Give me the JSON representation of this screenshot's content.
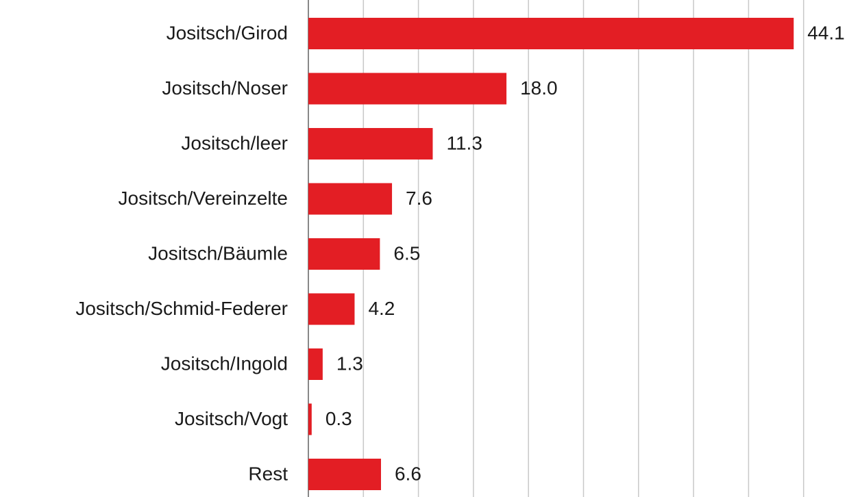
{
  "chart_data": {
    "type": "bar",
    "orientation": "horizontal",
    "categories": [
      "Jositsch/Girod",
      "Jositsch/Noser",
      "Jositsch/leer",
      "Jositsch/Vereinzelte",
      "Jositsch/Bäumle",
      "Jositsch/Schmid-Federer",
      "Jositsch/Ingold",
      "Jositsch/Vogt",
      "Rest"
    ],
    "values": [
      44.1,
      18.0,
      11.3,
      7.6,
      6.5,
      4.2,
      1.3,
      0.3,
      6.6
    ],
    "value_labels": [
      "44.1",
      "18.0",
      "11.3",
      "7.6",
      "6.5",
      "4.2",
      "1.3",
      "0.3",
      "6.6"
    ],
    "color": "#e31e24",
    "xlim": [
      0,
      48
    ],
    "xticks": [
      0,
      5,
      10,
      15,
      20,
      25,
      30,
      35,
      40,
      45
    ],
    "grid": true
  }
}
